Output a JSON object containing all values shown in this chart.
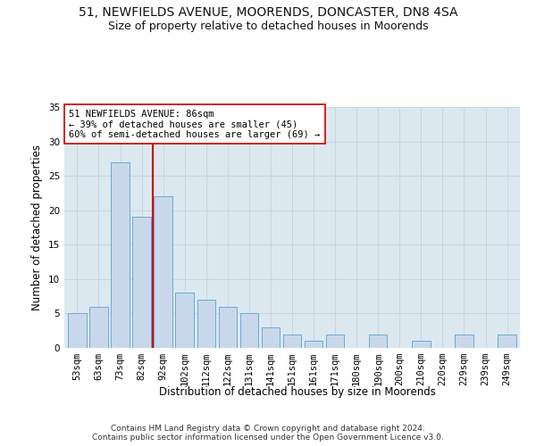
{
  "title1": "51, NEWFIELDS AVENUE, MOORENDS, DONCASTER, DN8 4SA",
  "title2": "Size of property relative to detached houses in Moorends",
  "xlabel": "Distribution of detached houses by size in Moorends",
  "ylabel": "Number of detached properties",
  "footer": "Contains HM Land Registry data © Crown copyright and database right 2024.\nContains public sector information licensed under the Open Government Licence v3.0.",
  "categories": [
    "53sqm",
    "63sqm",
    "73sqm",
    "82sqm",
    "92sqm",
    "102sqm",
    "112sqm",
    "122sqm",
    "131sqm",
    "141sqm",
    "151sqm",
    "161sqm",
    "171sqm",
    "180sqm",
    "190sqm",
    "200sqm",
    "210sqm",
    "220sqm",
    "229sqm",
    "239sqm",
    "249sqm"
  ],
  "values": [
    5,
    6,
    27,
    19,
    22,
    8,
    7,
    6,
    5,
    3,
    2,
    1,
    2,
    0,
    2,
    0,
    1,
    0,
    2,
    0,
    2
  ],
  "bar_color": "#c8d8ea",
  "bar_edge_color": "#6aaad4",
  "grid_color": "#c8d4df",
  "background_color": "#dce8f0",
  "vline_x": 3.5,
  "vline_color": "#cc0000",
  "annotation_text": "51 NEWFIELDS AVENUE: 86sqm\n← 39% of detached houses are smaller (45)\n60% of semi-detached houses are larger (69) →",
  "ylim": [
    0,
    35
  ],
  "yticks": [
    0,
    5,
    10,
    15,
    20,
    25,
    30,
    35
  ],
  "title1_fontsize": 10,
  "title2_fontsize": 9,
  "xlabel_fontsize": 8.5,
  "ylabel_fontsize": 8.5,
  "tick_fontsize": 7.5,
  "annotation_fontsize": 7.5,
  "footer_fontsize": 6.5
}
